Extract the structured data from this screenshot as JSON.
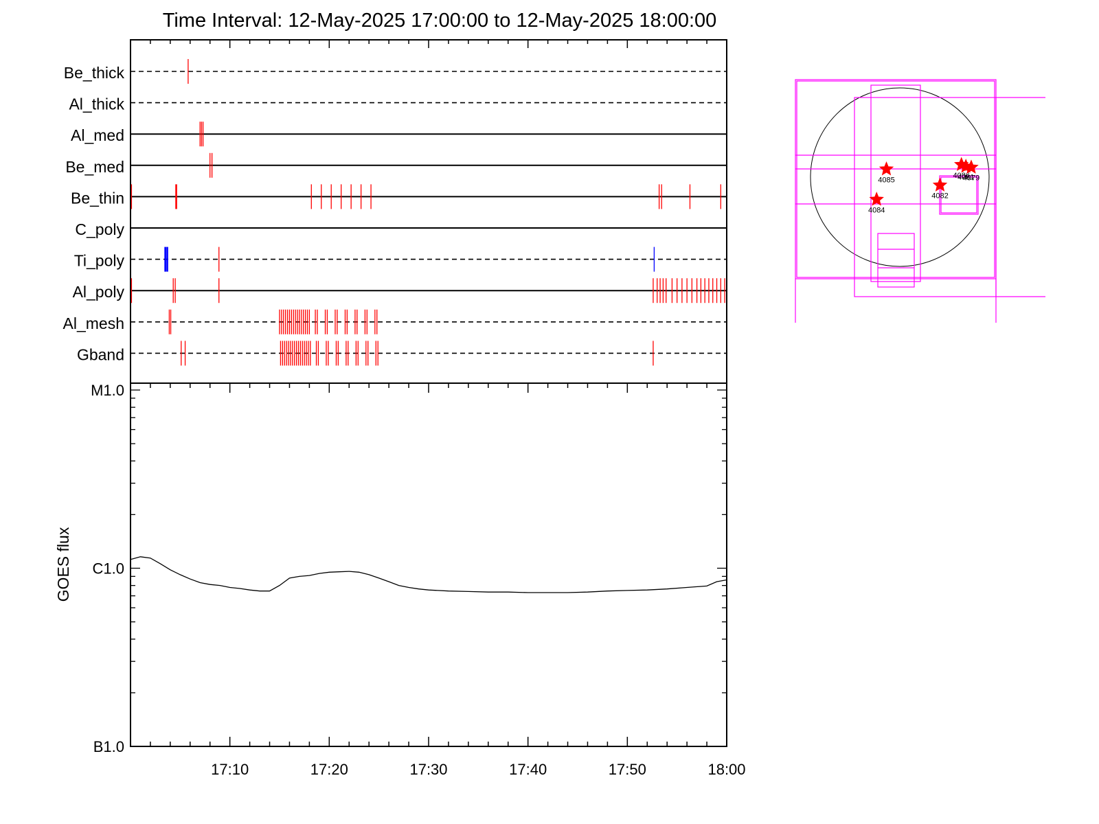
{
  "chart_data": {
    "type": "line",
    "title": "Time Interval: 12-May-2025 17:00:00 to 12-May-2025 18:00:00",
    "xrange": [
      "17:00",
      "18:00"
    ],
    "x_tick_labels": [
      "17:10",
      "17:20",
      "17:30",
      "17:40",
      "17:50",
      "18:00"
    ],
    "ylabel": "GOES flux",
    "y_scale": "log",
    "ylim": [
      "B1.0",
      "M1.0"
    ],
    "y_tick_labels": [
      "M1.0",
      "C1.0",
      "B1.0"
    ],
    "filter_channels": [
      {
        "name": "Be_thick",
        "line": "dashed",
        "events": [
          {
            "t": 5.8,
            "color": "#ff0000"
          }
        ]
      },
      {
        "name": "Al_thick",
        "line": "dashed",
        "events": []
      },
      {
        "name": "Al_med",
        "line": "solid",
        "events": [
          {
            "t": 7.0,
            "color": "#ff0000"
          },
          {
            "t": 7.15,
            "color": "#ff0000"
          },
          {
            "t": 7.3,
            "color": "#ff0000"
          }
        ]
      },
      {
        "name": "Be_med",
        "line": "solid",
        "events": [
          {
            "t": 8.0,
            "color": "#ff0000"
          },
          {
            "t": 8.2,
            "color": "#ff0000"
          }
        ]
      },
      {
        "name": "Be_thin",
        "line": "solid",
        "events": [
          {
            "t": 0.1,
            "color": "#ff0000"
          },
          {
            "t": 4.6,
            "color": "#ff0000",
            "bold": true
          },
          {
            "t": 18.2,
            "color": "#ff0000"
          },
          {
            "t": 19.2,
            "color": "#ff0000"
          },
          {
            "t": 20.2,
            "color": "#ff0000"
          },
          {
            "t": 21.2,
            "color": "#ff0000"
          },
          {
            "t": 22.2,
            "color": "#ff0000"
          },
          {
            "t": 23.2,
            "color": "#ff0000"
          },
          {
            "t": 24.2,
            "color": "#ff0000"
          },
          {
            "t": 53.2,
            "color": "#ff0000"
          },
          {
            "t": 53.45,
            "color": "#ff0000"
          },
          {
            "t": 56.3,
            "color": "#ff0000"
          },
          {
            "t": 59.4,
            "color": "#ff0000"
          }
        ]
      },
      {
        "name": "C_poly",
        "line": "solid",
        "events": []
      },
      {
        "name": "Ti_poly",
        "line": "dashed",
        "events": [
          {
            "t": 3.5,
            "color": "#0000ff",
            "bold": true
          },
          {
            "t": 3.7,
            "color": "#0000ff",
            "bold": true
          },
          {
            "t": 8.9,
            "color": "#ff0000"
          },
          {
            "t": 52.7,
            "color": "#0000ff"
          }
        ]
      },
      {
        "name": "Al_poly",
        "line": "solid",
        "events": [
          {
            "t": 0.1,
            "color": "#ff0000"
          },
          {
            "t": 4.3,
            "color": "#ff0000"
          },
          {
            "t": 4.5,
            "color": "#ff0000"
          },
          {
            "t": 8.9,
            "color": "#ff0000"
          },
          {
            "t": 52.6,
            "color": "#ff0000"
          },
          {
            "t": 53.0,
            "color": "#ff0000"
          },
          {
            "t": 53.3,
            "color": "#ff0000"
          },
          {
            "t": 53.6,
            "color": "#ff0000"
          },
          {
            "t": 53.9,
            "color": "#ff0000"
          },
          {
            "t": 54.5,
            "color": "#ff0000"
          },
          {
            "t": 55.0,
            "color": "#ff0000"
          },
          {
            "t": 55.5,
            "color": "#ff0000"
          },
          {
            "t": 56.0,
            "color": "#ff0000"
          },
          {
            "t": 56.5,
            "color": "#ff0000"
          },
          {
            "t": 57.0,
            "color": "#ff0000"
          },
          {
            "t": 57.4,
            "color": "#ff0000"
          },
          {
            "t": 57.8,
            "color": "#ff0000"
          },
          {
            "t": 58.2,
            "color": "#ff0000"
          },
          {
            "t": 58.6,
            "color": "#ff0000"
          },
          {
            "t": 59.0,
            "color": "#ff0000"
          },
          {
            "t": 59.4,
            "color": "#ff0000"
          },
          {
            "t": 59.8,
            "color": "#ff0000"
          }
        ]
      },
      {
        "name": "Al_mesh",
        "line": "dashed",
        "events": [
          {
            "t": 3.9,
            "color": "#ff0000"
          },
          {
            "t": 4.05,
            "color": "#ff0000"
          },
          {
            "t": 15.0,
            "color": "#ff0000"
          },
          {
            "t": 15.2,
            "color": "#ff0000"
          },
          {
            "t": 15.4,
            "color": "#ff0000"
          },
          {
            "t": 15.6,
            "color": "#ff0000"
          },
          {
            "t": 15.8,
            "color": "#ff0000"
          },
          {
            "t": 16.0,
            "color": "#ff0000"
          },
          {
            "t": 16.2,
            "color": "#ff0000"
          },
          {
            "t": 16.4,
            "color": "#ff0000"
          },
          {
            "t": 16.6,
            "color": "#ff0000"
          },
          {
            "t": 16.8,
            "color": "#ff0000"
          },
          {
            "t": 17.0,
            "color": "#ff0000"
          },
          {
            "t": 17.2,
            "color": "#ff0000"
          },
          {
            "t": 17.4,
            "color": "#ff0000"
          },
          {
            "t": 17.6,
            "color": "#ff0000"
          },
          {
            "t": 17.8,
            "color": "#ff0000"
          },
          {
            "t": 18.0,
            "color": "#ff0000"
          },
          {
            "t": 18.6,
            "color": "#ff0000"
          },
          {
            "t": 18.8,
            "color": "#ff0000"
          },
          {
            "t": 19.6,
            "color": "#ff0000"
          },
          {
            "t": 19.8,
            "color": "#ff0000"
          },
          {
            "t": 20.6,
            "color": "#ff0000"
          },
          {
            "t": 20.8,
            "color": "#ff0000"
          },
          {
            "t": 21.6,
            "color": "#ff0000"
          },
          {
            "t": 21.8,
            "color": "#ff0000"
          },
          {
            "t": 22.6,
            "color": "#ff0000"
          },
          {
            "t": 22.8,
            "color": "#ff0000"
          },
          {
            "t": 23.6,
            "color": "#ff0000"
          },
          {
            "t": 23.8,
            "color": "#ff0000"
          },
          {
            "t": 24.6,
            "color": "#ff0000"
          },
          {
            "t": 24.8,
            "color": "#ff0000"
          }
        ]
      },
      {
        "name": "Gband",
        "line": "dashed",
        "events": [
          {
            "t": 5.1,
            "color": "#ff0000"
          },
          {
            "t": 5.5,
            "color": "#ff0000"
          },
          {
            "t": 15.1,
            "color": "#ff0000"
          },
          {
            "t": 15.3,
            "color": "#ff0000"
          },
          {
            "t": 15.5,
            "color": "#ff0000"
          },
          {
            "t": 15.7,
            "color": "#ff0000"
          },
          {
            "t": 15.9,
            "color": "#ff0000"
          },
          {
            "t": 16.1,
            "color": "#ff0000"
          },
          {
            "t": 16.3,
            "color": "#ff0000"
          },
          {
            "t": 16.5,
            "color": "#ff0000"
          },
          {
            "t": 16.7,
            "color": "#ff0000"
          },
          {
            "t": 16.9,
            "color": "#ff0000"
          },
          {
            "t": 17.1,
            "color": "#ff0000"
          },
          {
            "t": 17.3,
            "color": "#ff0000"
          },
          {
            "t": 17.5,
            "color": "#ff0000"
          },
          {
            "t": 17.7,
            "color": "#ff0000"
          },
          {
            "t": 17.9,
            "color": "#ff0000"
          },
          {
            "t": 18.1,
            "color": "#ff0000"
          },
          {
            "t": 18.7,
            "color": "#ff0000"
          },
          {
            "t": 18.9,
            "color": "#ff0000"
          },
          {
            "t": 19.7,
            "color": "#ff0000"
          },
          {
            "t": 19.9,
            "color": "#ff0000"
          },
          {
            "t": 20.7,
            "color": "#ff0000"
          },
          {
            "t": 20.9,
            "color": "#ff0000"
          },
          {
            "t": 21.7,
            "color": "#ff0000"
          },
          {
            "t": 21.9,
            "color": "#ff0000"
          },
          {
            "t": 22.7,
            "color": "#ff0000"
          },
          {
            "t": 22.9,
            "color": "#ff0000"
          },
          {
            "t": 23.7,
            "color": "#ff0000"
          },
          {
            "t": 23.9,
            "color": "#ff0000"
          },
          {
            "t": 24.7,
            "color": "#ff0000"
          },
          {
            "t": 24.9,
            "color": "#ff0000"
          },
          {
            "t": 52.6,
            "color": "#ff0000"
          }
        ]
      }
    ],
    "goes_flux": {
      "t": [
        0,
        1,
        2,
        3,
        4,
        5,
        6,
        7,
        8,
        9,
        10,
        11,
        12,
        13,
        14,
        15,
        16,
        17,
        18,
        19,
        20,
        21,
        22,
        23,
        24,
        25,
        26,
        27,
        28,
        29,
        30,
        32,
        34,
        36,
        38,
        40,
        42,
        44,
        46,
        48,
        50,
        52,
        54,
        56,
        58,
        59,
        60
      ],
      "flux": [
        1.12e-06,
        1.16e-06,
        1.14e-06,
        1.06e-06,
        9.8e-07,
        9.2e-07,
        8.7e-07,
        8.3e-07,
        8.1e-07,
        8e-07,
        7.8e-07,
        7.7e-07,
        7.55e-07,
        7.45e-07,
        7.45e-07,
        8e-07,
        8.8e-07,
        9e-07,
        9.1e-07,
        9.35e-07,
        9.5e-07,
        9.55e-07,
        9.6e-07,
        9.5e-07,
        9.2e-07,
        8.8e-07,
        8.4e-07,
        8e-07,
        7.8e-07,
        7.65e-07,
        7.55e-07,
        7.45e-07,
        7.4e-07,
        7.35e-07,
        7.35e-07,
        7.3e-07,
        7.3e-07,
        7.3e-07,
        7.35e-07,
        7.45e-07,
        7.5e-07,
        7.55e-07,
        7.65e-07,
        7.8e-07,
        7.95e-07,
        8.4e-07,
        8.6e-07
      ]
    },
    "context_map": {
      "regions": [
        {
          "label": "4085",
          "dx": -0.15,
          "dy": 0.09
        },
        {
          "label": "4084",
          "dx": -0.26,
          "dy": -0.25
        },
        {
          "label": "4082",
          "dx": 0.45,
          "dy": -0.09
        },
        {
          "label": "4086",
          "dx": 0.69,
          "dy": 0.14
        },
        {
          "label": "4081",
          "dx": 0.74,
          "dy": 0.12
        },
        {
          "label": "4079",
          "dx": 0.8,
          "dy": 0.11
        }
      ]
    }
  },
  "colors": {
    "axis": "#000000",
    "event_red": "#ff0000",
    "event_blue": "#0000ff",
    "fov": "#ff00ff",
    "star": "#ff0000"
  }
}
